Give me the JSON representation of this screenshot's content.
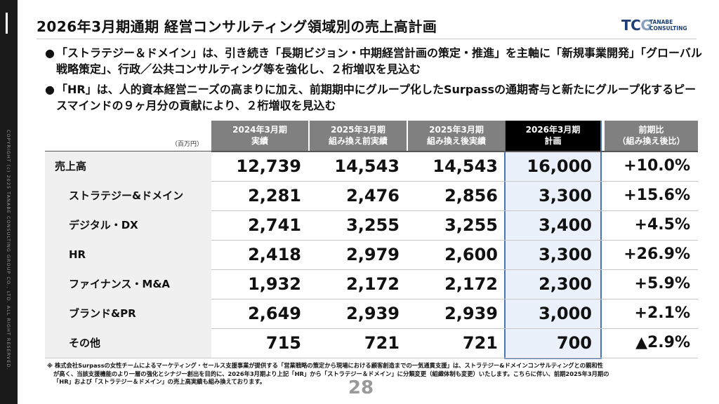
{
  "sidebar": {
    "copyright": "COPYRIGHT (c) 2025 TANABE CONSULTING GROUP CO., LTD. ALL RIGHT RESERVED."
  },
  "header": {
    "title": "2026年3月期通期 経営コンサルティング領域別の売上高計画",
    "logo_mark_left": "TC",
    "logo_mark_o": "G",
    "logo_name_line1": "TANABE",
    "logo_name_line2": "CONSULTING"
  },
  "bullets": [
    {
      "dot": "●",
      "text": "「ストラテジー＆ドメイン」は、引き続き「長期ビジョン・中期経営計画の策定・推進」を主軸に「新規事業開発」「グローバル戦略策定」、行政／公共コンサルティング等を強化し、２桁増収を見込む"
    },
    {
      "dot": "●",
      "text": "「HR」は、人的資本経営ニーズの高まりに加え、前期期中にグループ化したSurpassの通期寄与と新たにグループ化するピースマインドの９ヶ月分の貢献により、２桁増収を見込む"
    }
  ],
  "table": {
    "unit": "（百万円）",
    "headers": [
      {
        "line1": "2024年3月期",
        "line2": "実績"
      },
      {
        "line1": "2025年3月期",
        "line2": "組み換え前実績"
      },
      {
        "line1": "2025年3月期",
        "line2": "組み換え後実績"
      },
      {
        "line1": "2026年3月期",
        "line2": "計画"
      },
      {
        "line1": "前期比",
        "line2": "（組み換え後比）"
      }
    ],
    "rows": [
      {
        "label": "売上高",
        "v1": "12,739",
        "v2": "14,543",
        "v3": "14,543",
        "v4": "16,000",
        "pct": "+10.0%"
      },
      {
        "label": "ストラテジー&ドメイン",
        "v1": "2,281",
        "v2": "2,476",
        "v3": "2,856",
        "v4": "3,300",
        "pct": "+15.6%"
      },
      {
        "label": "デジタル・DX",
        "v1": "2,741",
        "v2": "3,255",
        "v3": "3,255",
        "v4": "3,400",
        "pct": "+4.5%"
      },
      {
        "label": "HR",
        "v1": "2,418",
        "v2": "2,979",
        "v3": "2,600",
        "v4": "3,300",
        "pct": "+26.9%"
      },
      {
        "label": "ファイナンス・M&A",
        "v1": "1,932",
        "v2": "2,172",
        "v3": "2,172",
        "v4": "2,300",
        "pct": "+5.9%"
      },
      {
        "label": "ブランド&PR",
        "v1": "2,649",
        "v2": "2,939",
        "v3": "2,939",
        "v4": "3,000",
        "pct": "+2.1%"
      },
      {
        "label": "その他",
        "v1": "715",
        "v2": "721",
        "v3": "721",
        "v4": "700",
        "pct": "▲2.9%"
      }
    ]
  },
  "footnote": {
    "line1": "※ 株式会社Surpassの女性チームによるマーケティング・セールス支援事業が提供する「営業戦略の策定から現場における顧客創造までの一気通貫支援」は、ストラテジー&ドメインコンサルティングとの親和性",
    "line2": "が高く、当該支援機能のより一層の強化とシナジー創出を目的に、2026年3月期より上記「HR」から「ストラテジー＆ドメイン」に分類変更（組織体制も変更）いたします。こちらに伴い、前期2025年3月期の",
    "line3": "「HR」および「ストラテジー＆ドメイン」の売上高実績も組み換えております。"
  },
  "page_number": "28"
}
